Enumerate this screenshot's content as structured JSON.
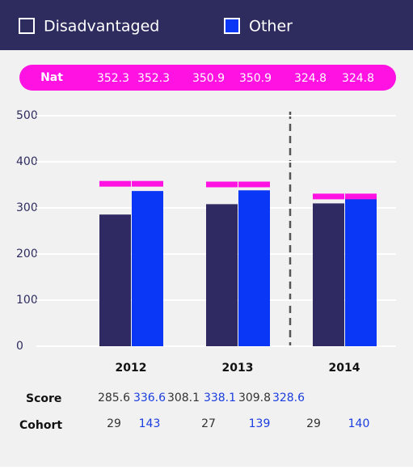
{
  "chart_data": {
    "type": "bar",
    "categories": [
      "2012",
      "2013",
      "2014"
    ],
    "series": [
      {
        "name": "Disadvantaged",
        "color": "#2f2b62",
        "values": [
          285.6,
          308.1,
          309.8
        ]
      },
      {
        "name": "Other",
        "color": "#0a36f5",
        "values": [
          336.6,
          338.1,
          328.6
        ]
      }
    ],
    "nat": {
      "label": "Nat",
      "color": "#ff12e2",
      "values": [
        352.3,
        352.3,
        350.9,
        350.9,
        324.8,
        324.8
      ]
    },
    "score_label": "Score",
    "cohort": {
      "label": "Cohort",
      "values": [
        29,
        143,
        27,
        139,
        29,
        140
      ]
    },
    "ylim": [
      0,
      500
    ],
    "yticks": [
      0,
      100,
      200,
      300,
      400,
      500
    ],
    "grid": true
  }
}
